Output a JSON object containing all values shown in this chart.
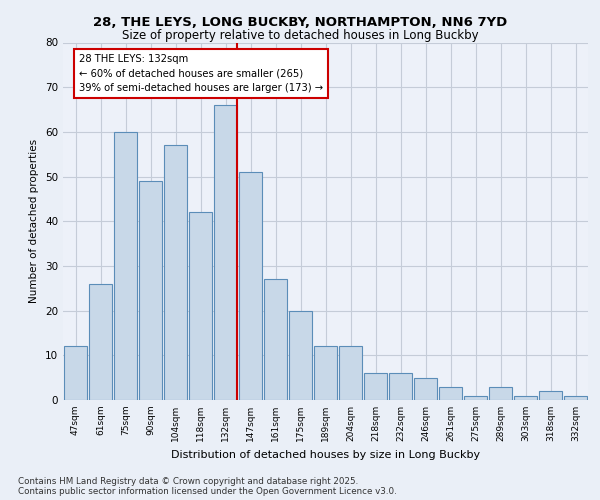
{
  "title1": "28, THE LEYS, LONG BUCKBY, NORTHAMPTON, NN6 7YD",
  "title2": "Size of property relative to detached houses in Long Buckby",
  "xlabel": "Distribution of detached houses by size in Long Buckby",
  "ylabel": "Number of detached properties",
  "categories": [
    "47sqm",
    "61sqm",
    "75sqm",
    "90sqm",
    "104sqm",
    "118sqm",
    "132sqm",
    "147sqm",
    "161sqm",
    "175sqm",
    "189sqm",
    "204sqm",
    "218sqm",
    "232sqm",
    "246sqm",
    "261sqm",
    "275sqm",
    "289sqm",
    "303sqm",
    "318sqm",
    "332sqm"
  ],
  "values": [
    12,
    26,
    60,
    49,
    57,
    42,
    66,
    51,
    27,
    20,
    12,
    12,
    6,
    6,
    5,
    3,
    1,
    3,
    1,
    2,
    1
  ],
  "bar_color": "#c8d8e8",
  "bar_edge_color": "#5b8db8",
  "highlight_index": 6,
  "highlight_line_color": "#cc0000",
  "annotation_text": "28 THE LEYS: 132sqm\n← 60% of detached houses are smaller (265)\n39% of semi-detached houses are larger (173) →",
  "annotation_box_color": "#ffffff",
  "annotation_box_edge": "#cc0000",
  "ylim": [
    0,
    80
  ],
  "yticks": [
    0,
    10,
    20,
    30,
    40,
    50,
    60,
    70,
    80
  ],
  "footer": "Contains HM Land Registry data © Crown copyright and database right 2025.\nContains public sector information licensed under the Open Government Licence v3.0.",
  "bg_color": "#eaeff7",
  "plot_bg_color": "#edf1f9",
  "grid_color": "#c5ccd8"
}
